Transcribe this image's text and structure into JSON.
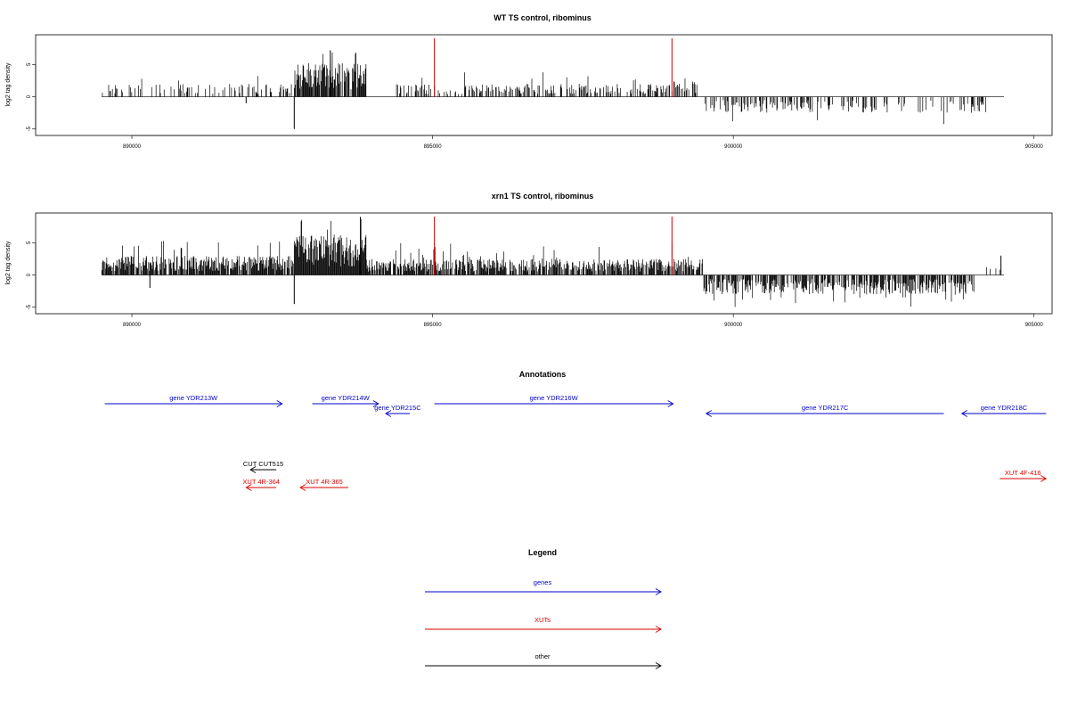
{
  "chart_data": [
    {
      "type": "bar",
      "title": "WT TS control, ribominus",
      "ylabel": "log2 tag density",
      "xlim": [
        888400,
        905300
      ],
      "ylim": [
        -6,
        9.6
      ],
      "y_ticks": [
        -5,
        0,
        5
      ],
      "x_ticks": [
        890000,
        895000,
        900000,
        905000
      ],
      "x_tick_labels": [
        "890000",
        "895000",
        "900000",
        "905000"
      ],
      "data_range": [
        889500,
        904500
      ],
      "markers": [
        895030,
        898980
      ],
      "marker_color": "#cc0000",
      "bar_color": "#000000",
      "segments": [
        {
          "start": 889500,
          "end": 892700,
          "dir": 1,
          "density": 0.25,
          "mean": 1.2,
          "peak": 3.5
        },
        {
          "start": 892700,
          "end": 893900,
          "dir": 1,
          "density": 0.9,
          "mean": 3.2,
          "peak": 7.2
        },
        {
          "start": 894400,
          "end": 899000,
          "dir": 1,
          "density": 0.4,
          "mean": 1.2,
          "peak": 4.0
        },
        {
          "start": 899000,
          "end": 899400,
          "dir": 1,
          "density": 0.6,
          "mean": 1.5,
          "peak": 4.0
        },
        {
          "start": 899500,
          "end": 904200,
          "dir": -1,
          "density": 0.35,
          "mean": 1.5,
          "peak": 4.5
        }
      ],
      "spikes": [
        {
          "x": 892700,
          "y": -5
        },
        {
          "x": 891900,
          "y": -1
        },
        {
          "x": 893300,
          "y": 7.2
        }
      ]
    },
    {
      "type": "bar",
      "title": "xrn1 TS control, ribominus",
      "ylabel": "log2 tag density",
      "xlim": [
        888400,
        905300
      ],
      "ylim": [
        -6,
        9.6
      ],
      "y_ticks": [
        -5,
        0,
        5
      ],
      "x_ticks": [
        890000,
        895000,
        900000,
        905000
      ],
      "x_tick_labels": [
        "890000",
        "895000",
        "900000",
        "905000"
      ],
      "data_range": [
        889500,
        904500
      ],
      "markers": [
        895030,
        898980
      ],
      "marker_color": "#cc0000",
      "bar_color": "#000000",
      "segments": [
        {
          "start": 889500,
          "end": 892700,
          "dir": 1,
          "density": 0.85,
          "mean": 1.8,
          "peak": 5.5
        },
        {
          "start": 892700,
          "end": 893900,
          "dir": 1,
          "density": 1.0,
          "mean": 3.8,
          "peak": 9.0
        },
        {
          "start": 893900,
          "end": 899500,
          "dir": 1,
          "density": 0.75,
          "mean": 1.5,
          "peak": 5.5
        },
        {
          "start": 899500,
          "end": 904000,
          "dir": -1,
          "density": 0.7,
          "mean": 1.8,
          "peak": 5.0
        },
        {
          "start": 904200,
          "end": 904500,
          "dir": 1,
          "density": 0.2,
          "mean": 1.0,
          "peak": 3.0
        }
      ],
      "spikes": [
        {
          "x": 892700,
          "y": -4.5
        },
        {
          "x": 890300,
          "y": -2
        },
        {
          "x": 893800,
          "y": 9.0
        },
        {
          "x": 904450,
          "y": 3.0
        }
      ]
    }
  ],
  "annotations": {
    "title": "Annotations",
    "genes_color": "#0000cc",
    "xuts_color": "#dd0000",
    "other_color": "#000000",
    "features": [
      {
        "label": "gene YDR213W",
        "start": 889550,
        "end": 892500,
        "dir": 1,
        "row": 0,
        "kind": "gene"
      },
      {
        "label": "gene YDR214W",
        "start": 893000,
        "end": 894100,
        "dir": 1,
        "row": 0,
        "kind": "gene"
      },
      {
        "label": "gene YDR215C",
        "start": 894220,
        "end": 894620,
        "dir": -1,
        "row": 1,
        "kind": "gene"
      },
      {
        "label": "gene YDR216W",
        "start": 895030,
        "end": 899000,
        "dir": 1,
        "row": 0,
        "kind": "gene"
      },
      {
        "label": "gene YDR217C",
        "start": 899550,
        "end": 903500,
        "dir": -1,
        "row": 1,
        "kind": "gene"
      },
      {
        "label": "gene YDR218C",
        "start": 903800,
        "end": 905200,
        "dir": -1,
        "row": 1,
        "kind": "gene"
      },
      {
        "label": "CUT CUT515",
        "start": 891970,
        "end": 892400,
        "dir": -1,
        "row": 2,
        "kind": "other"
      },
      {
        "label": "XUT 4R-364",
        "start": 891900,
        "end": 892400,
        "dir": -1,
        "row": 3,
        "kind": "xut"
      },
      {
        "label": "XUT 4R-365",
        "start": 892800,
        "end": 893600,
        "dir": -1,
        "row": 3,
        "kind": "xut"
      },
      {
        "label": "XUT 4F-416",
        "start": 904430,
        "end": 905200,
        "dir": 1,
        "row": 4,
        "kind": "xut"
      }
    ]
  },
  "legend": {
    "title": "Legend",
    "items": [
      {
        "label": "genes",
        "color": "#0000cc"
      },
      {
        "label": "XUTs",
        "color": "#dd0000"
      },
      {
        "label": "other",
        "color": "#000000"
      }
    ]
  }
}
